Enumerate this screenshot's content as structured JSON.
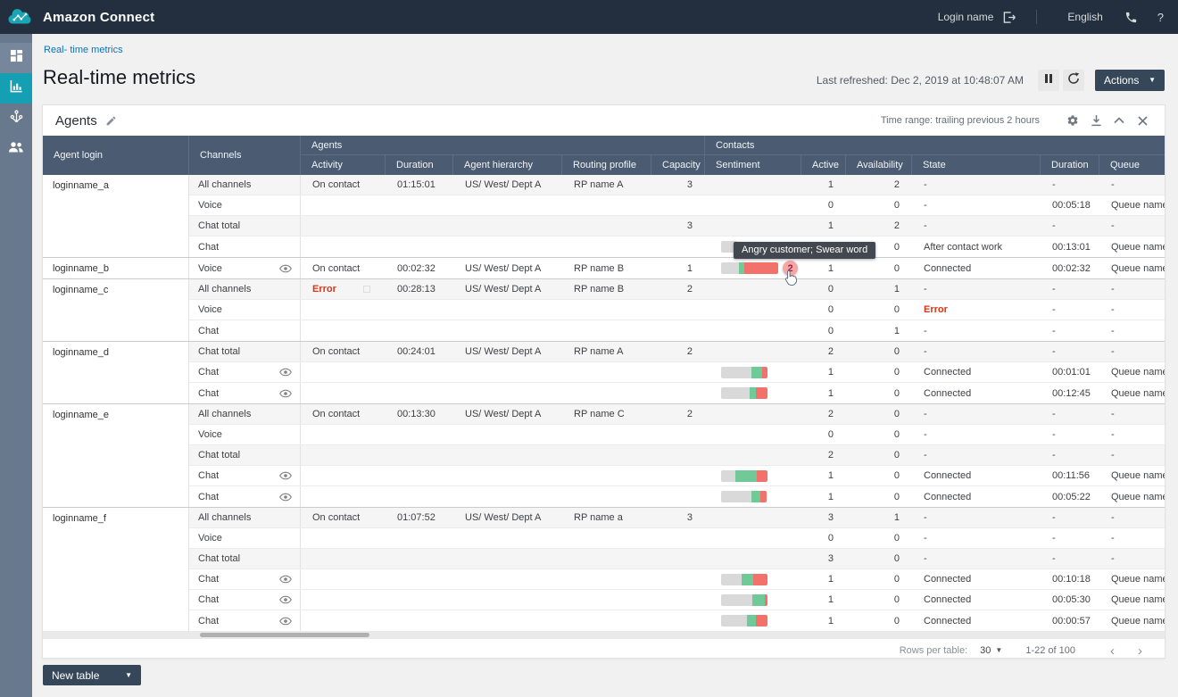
{
  "topbar": {
    "brand": "Amazon Connect",
    "login_label": "Login name",
    "language": "English",
    "help_label": "?"
  },
  "breadcrumb": "Real- time metrics",
  "page": {
    "title": "Real-time metrics",
    "last_refreshed": "Last refreshed: Dec 2, 2019 at 10:48:07 AM",
    "actions_label": "Actions"
  },
  "panel": {
    "title": "Agents",
    "time_range": "Time range: trailing previous 2 hours"
  },
  "table": {
    "columns": {
      "agent_login": "Agent login",
      "channels": "Channels",
      "agents_group": "Agents",
      "contacts_group": "Contacts",
      "activity": "Activity",
      "duration": "Duration",
      "agent_hierarchy": "Agent hierarchy",
      "routing_profile": "Routing profile",
      "capacity": "Capacity",
      "sentiment": "Sentiment",
      "active": "Active",
      "availability": "Availability",
      "state": "State",
      "contact_duration": "Duration",
      "queue": "Queue"
    },
    "rows": [
      {
        "agent": "loginname_a",
        "channel": "All channels",
        "activity": "On contact",
        "duration": "01:15:01",
        "hierarchy": "US/ West/ Dept A",
        "routing_profile": "RP name A",
        "capacity": "3",
        "active": "1",
        "availability": "2",
        "state": "-",
        "contact_duration": "-",
        "queue": "-",
        "shaded": true
      },
      {
        "channel": "Voice",
        "activity": "",
        "duration": "",
        "hierarchy": "",
        "routing_profile": "",
        "capacity": "",
        "active": "0",
        "availability": "0",
        "state": "-",
        "contact_duration": "00:05:18",
        "queue": "Queue name"
      },
      {
        "channel": "Chat total",
        "activity": "",
        "duration": "",
        "hierarchy": "",
        "routing_profile": "",
        "capacity": "3",
        "active": "1",
        "availability": "2",
        "state": "-",
        "contact_duration": "-",
        "queue": "-",
        "shaded": true
      },
      {
        "channel": "Chat",
        "activity": "",
        "duration": "",
        "hierarchy": "",
        "routing_profile": "",
        "capacity": "",
        "sentiment": {
          "gray": 18,
          "green": 0,
          "red": 0
        },
        "active": "",
        "availability": "0",
        "state": "After contact work",
        "contact_duration": "00:13:01",
        "queue": "Queue name"
      },
      {
        "agent": "loginname_b",
        "channel": "Voice",
        "eye": true,
        "activity": "On contact",
        "duration": "00:02:32",
        "hierarchy": "US/ West/ Dept A",
        "routing_profile": "RP name B",
        "capacity": "1",
        "sentiment": {
          "gray": 20,
          "green": 6,
          "red": 38,
          "badge": "2"
        },
        "active": "1",
        "availability": "0",
        "state": "Connected",
        "contact_duration": "00:02:32",
        "queue": "Queue name"
      },
      {
        "agent": "loginname_c",
        "channel": "All channels",
        "activity": "Error",
        "activity_error": true,
        "error_icon": true,
        "duration": "00:28:13",
        "hierarchy": "US/ West/ Dept A",
        "routing_profile": "RP name B",
        "capacity": "2",
        "active": "0",
        "availability": "1",
        "state": "-",
        "contact_duration": "-",
        "queue": "-",
        "shaded": true
      },
      {
        "channel": "Voice",
        "activity": "",
        "duration": "",
        "hierarchy": "",
        "routing_profile": "",
        "capacity": "",
        "active": "0",
        "availability": "0",
        "state": "Error",
        "state_error": true,
        "contact_duration": "-",
        "queue": "-"
      },
      {
        "channel": "Chat",
        "activity": "",
        "duration": "",
        "hierarchy": "",
        "routing_profile": "",
        "capacity": "",
        "active": "0",
        "availability": "1",
        "state": "-",
        "contact_duration": "-",
        "queue": "-"
      },
      {
        "agent": "loginname_d",
        "channel": "Chat total",
        "activity": "On contact",
        "duration": "00:24:01",
        "hierarchy": "US/ West/ Dept A",
        "routing_profile": "RP name A",
        "capacity": "2",
        "active": "2",
        "availability": "0",
        "state": "-",
        "contact_duration": "-",
        "queue": "-",
        "shaded": true
      },
      {
        "channel": "Chat",
        "eye": true,
        "activity": "",
        "duration": "",
        "hierarchy": "",
        "routing_profile": "",
        "capacity": "",
        "sentiment": {
          "gray": 34,
          "green": 12,
          "red": 6
        },
        "active": "1",
        "availability": "0",
        "state": "Connected",
        "contact_duration": "00:01:01",
        "queue": "Queue name"
      },
      {
        "channel": "Chat",
        "eye": true,
        "activity": "",
        "duration": "",
        "hierarchy": "",
        "routing_profile": "",
        "capacity": "",
        "sentiment": {
          "gray": 32,
          "green": 7,
          "red": 13
        },
        "active": "1",
        "availability": "0",
        "state": "Connected",
        "contact_duration": "00:12:45",
        "queue": "Queue name"
      },
      {
        "agent": "loginname_e",
        "channel": "All channels",
        "activity": "On contact",
        "duration": "00:13:30",
        "hierarchy": "US/ West/ Dept A",
        "routing_profile": "RP name C",
        "capacity": "2",
        "active": "2",
        "availability": "0",
        "state": "-",
        "contact_duration": "-",
        "queue": "-",
        "shaded": true
      },
      {
        "channel": "Voice",
        "activity": "",
        "duration": "",
        "hierarchy": "",
        "routing_profile": "",
        "capacity": "",
        "active": "0",
        "availability": "0",
        "state": "-",
        "contact_duration": "-",
        "queue": "-"
      },
      {
        "channel": "Chat total",
        "activity": "",
        "duration": "",
        "hierarchy": "",
        "routing_profile": "",
        "capacity": "",
        "active": "2",
        "availability": "0",
        "state": "-",
        "contact_duration": "-",
        "queue": "-",
        "shaded": true
      },
      {
        "channel": "Chat",
        "eye": true,
        "activity": "",
        "duration": "",
        "hierarchy": "",
        "routing_profile": "",
        "capacity": "",
        "sentiment": {
          "gray": 16,
          "green": 24,
          "red": 12
        },
        "active": "1",
        "availability": "0",
        "state": "Connected",
        "contact_duration": "00:11:56",
        "queue": "Queue name"
      },
      {
        "channel": "Chat",
        "eye": true,
        "activity": "",
        "duration": "",
        "hierarchy": "",
        "routing_profile": "",
        "capacity": "",
        "sentiment": {
          "gray": 34,
          "green": 10,
          "red": 7
        },
        "active": "1",
        "availability": "0",
        "state": "Connected",
        "contact_duration": "00:05:22",
        "queue": "Queue name"
      },
      {
        "agent": "loginname_f",
        "channel": "All channels",
        "activity": "On contact",
        "duration": "01:07:52",
        "hierarchy": "US/ West/ Dept A",
        "routing_profile": "RP name a",
        "capacity": "3",
        "active": "3",
        "availability": "1",
        "state": "-",
        "contact_duration": "-",
        "queue": "-",
        "shaded": true
      },
      {
        "channel": "Voice",
        "activity": "",
        "duration": "",
        "hierarchy": "",
        "routing_profile": "",
        "capacity": "",
        "active": "0",
        "availability": "0",
        "state": "-",
        "contact_duration": "-",
        "queue": "-"
      },
      {
        "channel": "Chat total",
        "activity": "",
        "duration": "",
        "hierarchy": "",
        "routing_profile": "",
        "capacity": "",
        "active": "3",
        "availability": "0",
        "state": "-",
        "contact_duration": "-",
        "queue": "-",
        "shaded": true
      },
      {
        "channel": "Chat",
        "eye": true,
        "activity": "",
        "duration": "",
        "hierarchy": "",
        "routing_profile": "",
        "capacity": "",
        "sentiment": {
          "gray": 23,
          "green": 13,
          "red": 16
        },
        "active": "1",
        "availability": "0",
        "state": "Connected",
        "contact_duration": "00:10:18",
        "queue": "Queue name"
      },
      {
        "channel": "Chat",
        "eye": true,
        "activity": "",
        "duration": "",
        "hierarchy": "",
        "routing_profile": "",
        "capacity": "",
        "sentiment": {
          "gray": 35,
          "green": 14,
          "red": 3
        },
        "active": "1",
        "availability": "0",
        "state": "Connected",
        "contact_duration": "00:05:30",
        "queue": "Queue name"
      },
      {
        "channel": "Chat",
        "eye": true,
        "activity": "",
        "duration": "",
        "hierarchy": "",
        "routing_profile": "",
        "capacity": "",
        "sentiment": {
          "gray": 29,
          "green": 10,
          "red": 13
        },
        "active": "1",
        "availability": "0",
        "state": "Connected",
        "contact_duration": "00:00:57",
        "queue": "Queue name"
      }
    ]
  },
  "tooltip": {
    "text": "Angry customer; Swear word"
  },
  "footer": {
    "rows_per_table_label": "Rows per table:",
    "rows_per_table_value": "30",
    "range": "1-22 of 100"
  },
  "new_table_label": "New table",
  "icons": [
    "connect-logo",
    "logout-icon",
    "phone-icon",
    "help-icon",
    "dashboard-icon",
    "metrics-icon",
    "routing-icon",
    "users-icon",
    "pause-icon",
    "refresh-icon",
    "edit-icon",
    "gear-icon",
    "download-icon",
    "collapse-icon",
    "close-icon",
    "eye-icon",
    "cursor-pointer"
  ],
  "colors": {
    "topbar_bg": "#232f3e",
    "sidebar_bg": "#68798e",
    "accent_teal": "#149fb4",
    "table_header_bg": "#4a5b72",
    "error_red": "#df3312",
    "sentiment_gray": "#d9d9d9",
    "sentiment_green": "#6fca97",
    "sentiment_red": "#f3716b",
    "badge_bg": "#f5a6a6",
    "link_blue": "#0a72bb"
  }
}
